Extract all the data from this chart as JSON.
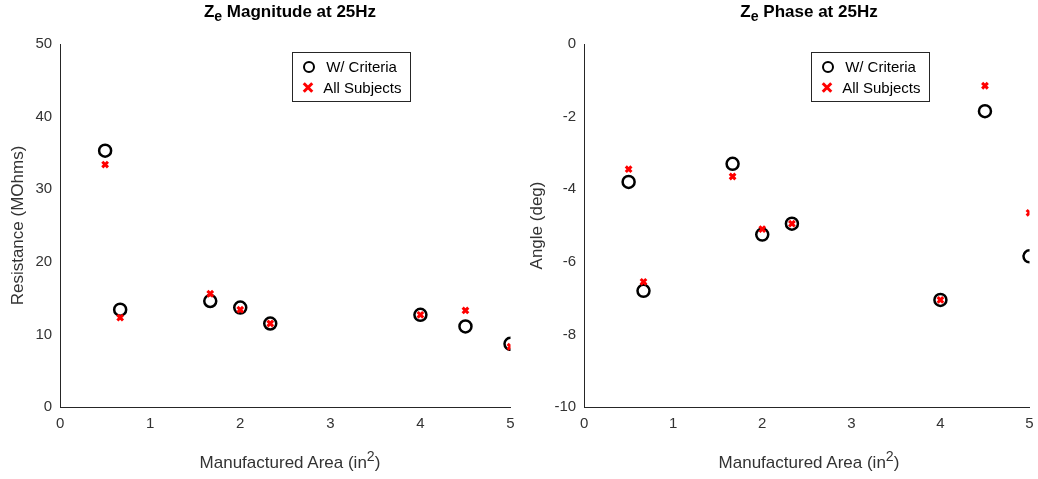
{
  "chart_data": [
    {
      "type": "scatter",
      "title": "Z$_{e}$ Magnitude at 25Hz",
      "xlabel": "Manufactured Area (in$^{2}$)",
      "ylabel": "Resistance (MOhms)",
      "xlim": [
        0,
        5
      ],
      "xticks": [
        0,
        1,
        2,
        3,
        4,
        5
      ],
      "ylim": [
        0,
        50
      ],
      "yticks": [
        0,
        10,
        20,
        30,
        40,
        50
      ],
      "grid": false,
      "legend": "top right",
      "series": [
        {
          "name": "W/ Criteria",
          "color": "#000000",
          "marker": "circle",
          "x": [
            0.5,
            0.667,
            1.667,
            2,
            2.333,
            4,
            4.5,
            5
          ],
          "values": [
            35.3,
            13.4,
            14.6,
            13.7,
            11.5,
            12.7,
            11.1,
            8.7
          ]
        },
        {
          "name": "All Subjects",
          "color": "#ff0000",
          "marker": "cross",
          "x": [
            0.5,
            0.667,
            1.667,
            2,
            2.333,
            4,
            4.5,
            5
          ],
          "values": [
            33.4,
            12.3,
            15.6,
            13.4,
            11.5,
            12.7,
            13.3,
            8.3
          ]
        }
      ]
    },
    {
      "type": "scatter",
      "title": "Z$_{e}$ Phase at 25Hz",
      "xlabel": "Manufactured Area (in$^{2}$)",
      "ylabel": "Angle (deg)",
      "xlim": [
        0,
        5
      ],
      "xticks": [
        0,
        1,
        2,
        3,
        4,
        5
      ],
      "ylim": [
        -10,
        0
      ],
      "yticks": [
        -10,
        -8,
        -6,
        -4,
        -2,
        0
      ],
      "grid": false,
      "legend": "top right",
      "series": [
        {
          "name": "W/ Criteria",
          "color": "#000000",
          "marker": "circle",
          "x": [
            0.5,
            0.667,
            1.667,
            2,
            2.333,
            4,
            4.5,
            5
          ],
          "values": [
            -3.8,
            -6.8,
            -3.3,
            -5.25,
            -4.95,
            -7.05,
            -1.85,
            -5.85
          ]
        },
        {
          "name": "All Subjects",
          "color": "#ff0000",
          "marker": "cross",
          "x": [
            0.5,
            0.667,
            1.667,
            2,
            2.333,
            4,
            4.5,
            5
          ],
          "values": [
            -3.45,
            -6.55,
            -3.65,
            -5.1,
            -4.95,
            -7.05,
            -1.15,
            -4.65
          ]
        }
      ]
    }
  ]
}
